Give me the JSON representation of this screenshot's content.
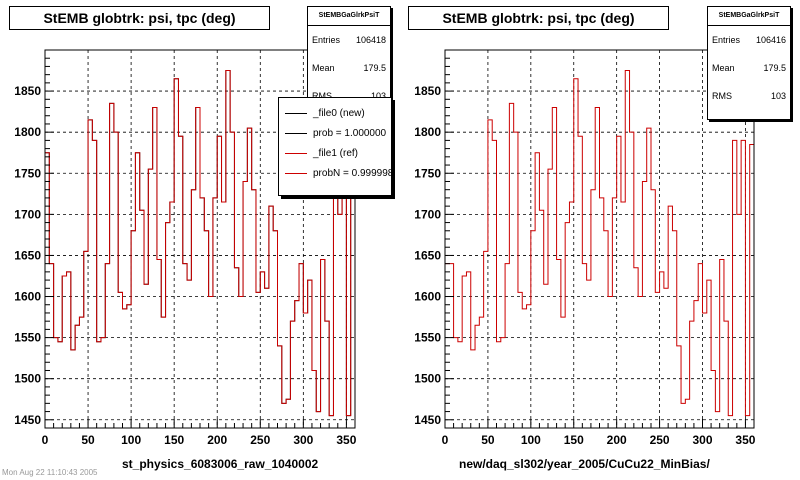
{
  "colors": {
    "ref": "#cc0000",
    "new": "#000000",
    "grid": "#000000",
    "background": "#ffffff"
  },
  "panels": [
    {
      "title": "StEMB globtrk: psi, tpc (deg)",
      "stats": {
        "name": "StEMBGaGlrkPsiT",
        "rows": [
          {
            "label": "Entries",
            "value": "106418"
          },
          {
            "label": "Mean",
            "value": "179.5"
          },
          {
            "label": "RMS",
            "value": "103"
          }
        ]
      },
      "xcaption": "st_physics_6083006_raw_1040002",
      "legend": [
        {
          "label": "_file0 (new)",
          "color": "#000000"
        },
        {
          "label": "prob = 1.000000",
          "color": "#000000"
        },
        {
          "label": "_file1 (ref)",
          "color": "#cc0000"
        },
        {
          "label": "probN = 0.999998",
          "color": "#cc0000"
        }
      ]
    },
    {
      "title": "StEMB globtrk: psi, tpc (deg)",
      "stats": {
        "name": "StEMBGaGlrkPsiT",
        "rows": [
          {
            "label": "Entries",
            "value": "106416"
          },
          {
            "label": "Mean",
            "value": "179.5"
          },
          {
            "label": "RMS",
            "value": "103"
          }
        ]
      },
      "xcaption": "new/daq_sl302/year_2005/CuCu22_MinBias/"
    }
  ],
  "footer": "Mon Aug 22 11:10:43 2005",
  "chart_data": [
    {
      "type": "histogram-step",
      "title": "StEMB globtrk: psi, tpc (deg)",
      "xlabel": "st_physics_6083006_raw_1040002",
      "ylabel": "",
      "xlim": [
        0,
        360
      ],
      "ylim": [
        1440,
        1900
      ],
      "xticks": [
        0,
        50,
        100,
        150,
        200,
        250,
        300,
        350
      ],
      "yticks": [
        1450,
        1500,
        1550,
        1600,
        1650,
        1700,
        1750,
        1800,
        1850
      ],
      "grid": true,
      "legend_position": "top-right",
      "bin_width": 5,
      "series": [
        {
          "name": "_file0 (new)",
          "color": "#000000"
        },
        {
          "name": "_file1 (ref)",
          "color": "#cc0000"
        }
      ],
      "x": [
        0,
        5,
        10,
        15,
        20,
        25,
        30,
        35,
        40,
        45,
        50,
        55,
        60,
        65,
        70,
        75,
        80,
        85,
        90,
        95,
        100,
        105,
        110,
        115,
        120,
        125,
        130,
        135,
        140,
        145,
        150,
        155,
        160,
        165,
        170,
        175,
        180,
        185,
        190,
        195,
        200,
        205,
        210,
        215,
        220,
        225,
        230,
        235,
        240,
        245,
        250,
        255,
        260,
        265,
        270,
        275,
        280,
        285,
        290,
        295,
        300,
        305,
        310,
        315,
        320,
        325,
        330,
        335,
        340,
        345,
        350,
        355
      ],
      "values": [
        1775,
        1640,
        1550,
        1545,
        1625,
        1630,
        1535,
        1565,
        1575,
        1655,
        1815,
        1790,
        1545,
        1550,
        1640,
        1835,
        1800,
        1605,
        1585,
        1590,
        1680,
        1775,
        1705,
        1615,
        1755,
        1830,
        1645,
        1575,
        1690,
        1715,
        1865,
        1795,
        1640,
        1620,
        1730,
        1830,
        1720,
        1680,
        1600,
        1720,
        1795,
        1715,
        1875,
        1800,
        1635,
        1600,
        1740,
        1805,
        1730,
        1605,
        1630,
        1610,
        1710,
        1680,
        1540,
        1470,
        1475,
        1570,
        1595,
        1640,
        1580,
        1620,
        1510,
        1460,
        1645,
        1570,
        1455,
        1790,
        1700,
        1790,
        1455,
        1740
      ],
      "values_ref": [
        1775,
        1640,
        1550,
        1545,
        1625,
        1630,
        1535,
        1565,
        1575,
        1655,
        1815,
        1790,
        1545,
        1550,
        1640,
        1835,
        1800,
        1605,
        1585,
        1590,
        1680,
        1775,
        1705,
        1615,
        1755,
        1830,
        1645,
        1575,
        1690,
        1715,
        1865,
        1795,
        1640,
        1620,
        1730,
        1830,
        1720,
        1680,
        1600,
        1720,
        1795,
        1715,
        1875,
        1800,
        1635,
        1600,
        1740,
        1805,
        1730,
        1605,
        1630,
        1610,
        1710,
        1680,
        1540,
        1470,
        1475,
        1570,
        1595,
        1640,
        1580,
        1620,
        1510,
        1460,
        1645,
        1570,
        1455,
        1790,
        1700,
        1790,
        1455,
        1740
      ]
    },
    {
      "type": "histogram-step",
      "title": "StEMB globtrk: psi, tpc (deg)",
      "xlabel": "new/daq_sl302/year_2005/CuCu22_MinBias/",
      "ylabel": "",
      "xlim": [
        0,
        360
      ],
      "ylim": [
        1440,
        1900
      ],
      "xticks": [
        0,
        50,
        100,
        150,
        200,
        250,
        300,
        350
      ],
      "yticks": [
        1450,
        1500,
        1550,
        1600,
        1650,
        1700,
        1750,
        1800,
        1850
      ],
      "grid": true,
      "bin_width": 5,
      "series": [
        {
          "name": "_file1 (ref)",
          "color": "#cc0000"
        }
      ],
      "x": [
        0,
        5,
        10,
        15,
        20,
        25,
        30,
        35,
        40,
        45,
        50,
        55,
        60,
        65,
        70,
        75,
        80,
        85,
        90,
        95,
        100,
        105,
        110,
        115,
        120,
        125,
        130,
        135,
        140,
        145,
        150,
        155,
        160,
        165,
        170,
        175,
        180,
        185,
        190,
        195,
        200,
        205,
        210,
        215,
        220,
        225,
        230,
        235,
        240,
        245,
        250,
        255,
        260,
        265,
        270,
        275,
        280,
        285,
        290,
        295,
        300,
        305,
        310,
        315,
        320,
        325,
        330,
        335,
        340,
        345,
        350,
        355
      ],
      "values": [
        1640,
        1640,
        1550,
        1545,
        1625,
        1630,
        1535,
        1565,
        1575,
        1655,
        1815,
        1790,
        1545,
        1550,
        1640,
        1835,
        1800,
        1605,
        1585,
        1590,
        1680,
        1775,
        1705,
        1615,
        1755,
        1830,
        1645,
        1575,
        1690,
        1715,
        1865,
        1795,
        1640,
        1620,
        1730,
        1830,
        1720,
        1680,
        1600,
        1720,
        1795,
        1715,
        1875,
        1800,
        1635,
        1600,
        1740,
        1805,
        1730,
        1605,
        1630,
        1610,
        1710,
        1680,
        1540,
        1470,
        1475,
        1570,
        1595,
        1640,
        1580,
        1620,
        1510,
        1460,
        1645,
        1570,
        1455,
        1790,
        1700,
        1790,
        1455,
        1785
      ]
    }
  ]
}
